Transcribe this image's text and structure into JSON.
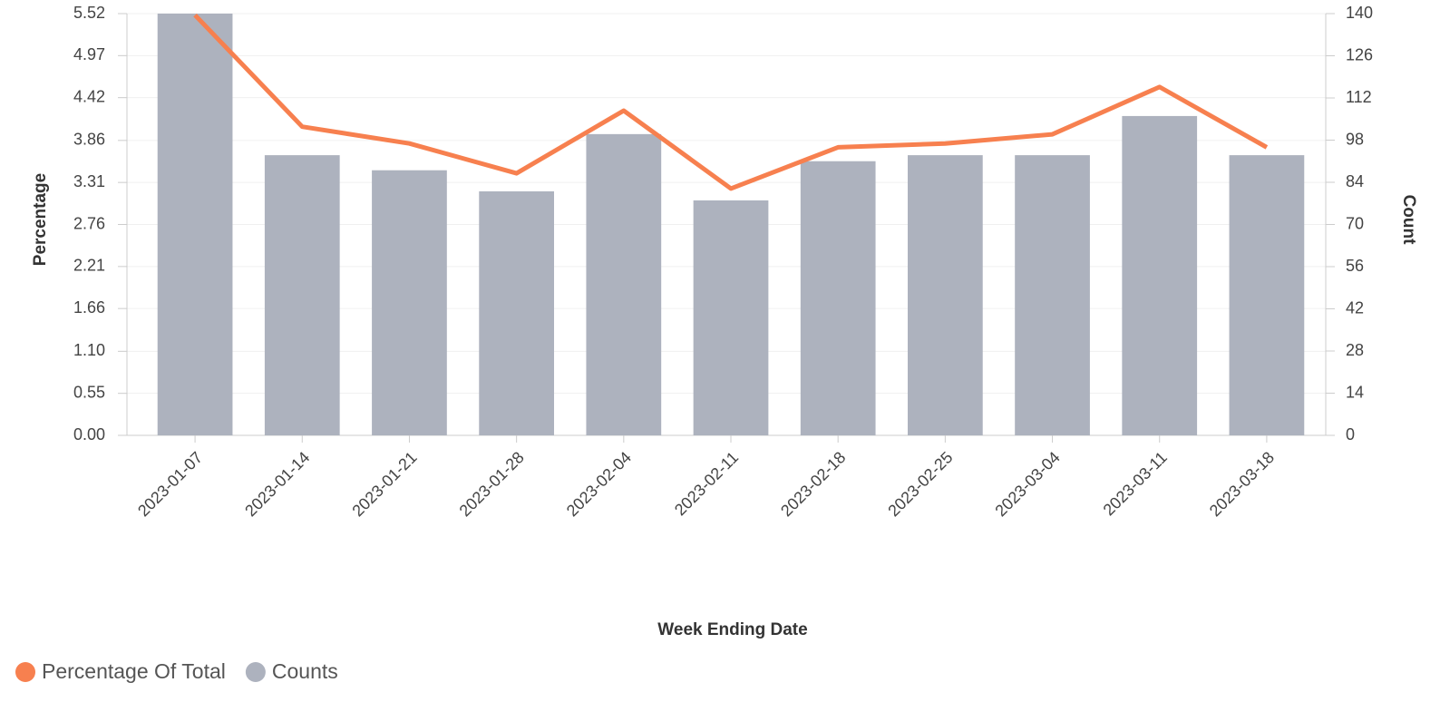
{
  "chart_data": {
    "type": "bar-line",
    "x_label": "Week Ending Date",
    "y_label": "Percentage",
    "y2_label": "Count",
    "categories": [
      "2023-01-07",
      "2023-01-14",
      "2023-01-21",
      "2023-01-28",
      "2023-02-04",
      "2023-02-11",
      "2023-02-18",
      "2023-02-25",
      "2023-03-04",
      "2023-03-11",
      "2023-03-18"
    ],
    "series": [
      {
        "name": "Percentage Of Total",
        "type": "line",
        "color": "#f7804f",
        "values": [
          5.5,
          4.04,
          3.82,
          3.43,
          4.25,
          3.23,
          3.77,
          3.82,
          3.94,
          4.56,
          3.77
        ]
      },
      {
        "name": "Counts",
        "type": "bar",
        "axis": "y2",
        "color": "#adb2be",
        "values": [
          140,
          93,
          88,
          81,
          100,
          78,
          91,
          93,
          93,
          106,
          93
        ]
      }
    ],
    "ylim": [
      0,
      5.52
    ],
    "yticks": [
      {
        "value": 0,
        "label": "0.00"
      },
      0.55,
      {
        "value": 1.1,
        "label": "1.10"
      },
      1.66,
      2.21,
      2.76,
      3.31,
      3.86,
      4.42,
      4.97,
      5.52
    ],
    "y2lim": [
      0,
      140
    ],
    "y2ticks": [
      0,
      14,
      28,
      42,
      56,
      70,
      84,
      98,
      112,
      126,
      140
    ],
    "grid": true,
    "legend": "bottom-left"
  }
}
